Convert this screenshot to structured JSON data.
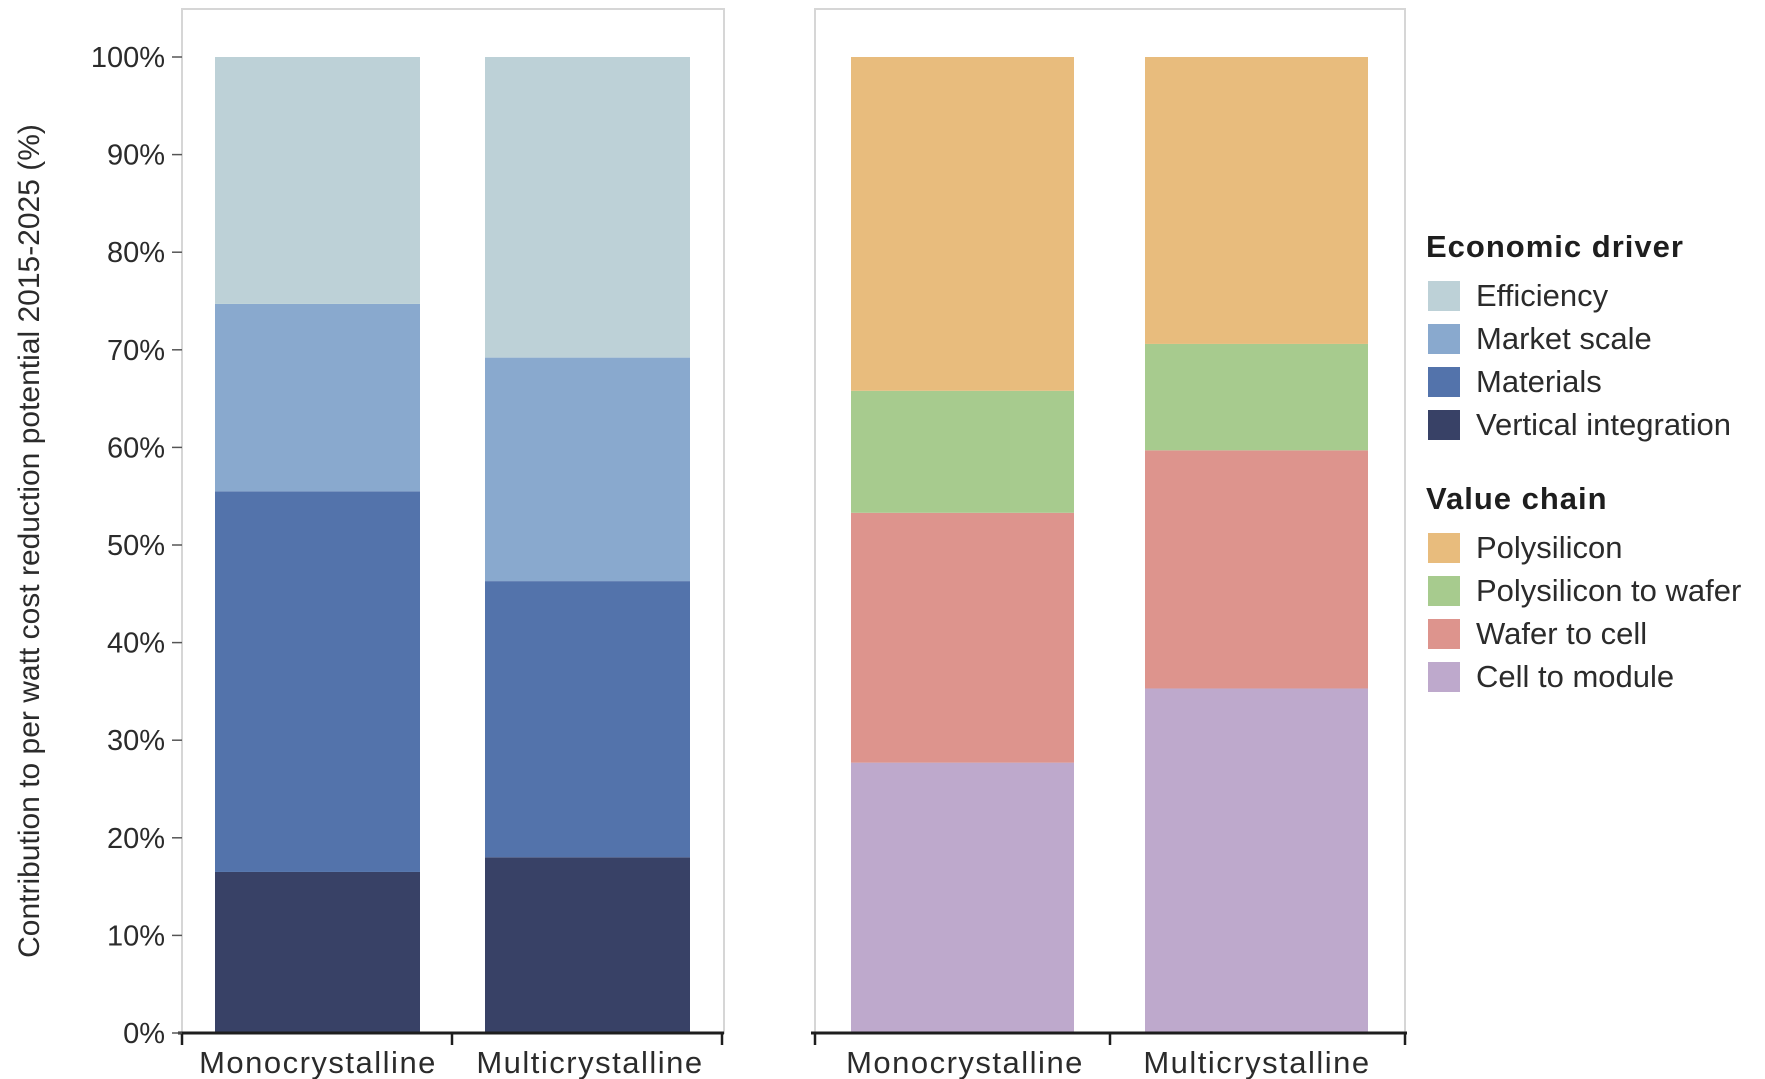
{
  "chart_data": [
    {
      "type": "bar",
      "stacked": true,
      "ylabel": "Contribution to per watt cost reduction potential 2015-2025 (%)",
      "ylim": [
        0,
        100
      ],
      "yticks": [
        "0%",
        "10%",
        "20%",
        "30%",
        "40%",
        "50%",
        "60%",
        "70%",
        "80%",
        "90%",
        "100%"
      ],
      "categories": [
        "Monocrystalline",
        "Multicrystalline"
      ],
      "series": [
        {
          "name": "Vertical integration",
          "color": "#384166",
          "values": [
            16.5,
            18
          ]
        },
        {
          "name": "Materials",
          "color": "#5373ab",
          "values": [
            39,
            28.3
          ]
        },
        {
          "name": "Market scale",
          "color": "#89a9ce",
          "values": [
            19.2,
            22.9
          ]
        },
        {
          "name": "Efficiency",
          "color": "#bdd1d7",
          "values": [
            25.3,
            30.8
          ]
        }
      ]
    },
    {
      "type": "bar",
      "stacked": true,
      "ylim": [
        0,
        100
      ],
      "categories": [
        "Monocrystalline",
        "Multicrystalline"
      ],
      "series": [
        {
          "name": "Cell to module",
          "color": "#bea9cc",
          "values": [
            27.7,
            35.3
          ]
        },
        {
          "name": "Wafer to cell",
          "color": "#dd948d",
          "values": [
            25.6,
            24.4
          ]
        },
        {
          "name": "Polysilicon to wafer",
          "color": "#a7cb8e",
          "values": [
            12.5,
            10.9
          ]
        },
        {
          "name": "Polysilicon",
          "color": "#e8bc7d",
          "values": [
            34.2,
            29.4
          ]
        }
      ]
    }
  ],
  "legend": {
    "groups": [
      {
        "title": "Economic driver",
        "items": [
          {
            "label": "Efficiency",
            "color": "#bdd1d7"
          },
          {
            "label": "Market scale",
            "color": "#89a9ce"
          },
          {
            "label": "Materials",
            "color": "#5373ab"
          },
          {
            "label": "Vertical integration",
            "color": "#384166"
          }
        ]
      },
      {
        "title": "Value chain",
        "items": [
          {
            "label": "Polysilicon",
            "color": "#e8bc7d"
          },
          {
            "label": "Polysilicon to wafer",
            "color": "#a7cb8e"
          },
          {
            "label": "Wafer to cell",
            "color": "#dd948d"
          },
          {
            "label": "Cell to module",
            "color": "#bea9cc"
          }
        ]
      }
    ]
  }
}
